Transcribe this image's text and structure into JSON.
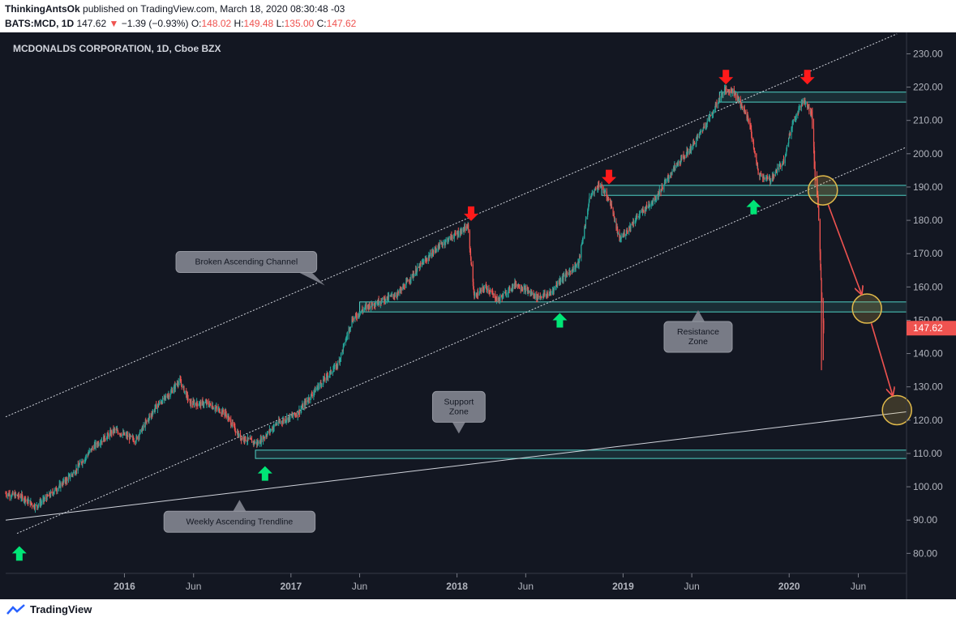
{
  "header": {
    "author": "ThinkingAntsOk",
    "published_text": "published on TradingView.com, March 18, 2020 08:30:48 -03",
    "symbol": "BATS:MCD, 1D",
    "last": "147.62",
    "down_arrow": "▼",
    "change": "−1.39 (−0.93%)",
    "o_label": "O:",
    "o_value": "148.02",
    "h_label": "H:",
    "h_value": "149.48",
    "l_label": "L:",
    "l_value": "135.00",
    "c_label": "C:",
    "c_value": "147.62"
  },
  "footer": {
    "brand": "TradingView",
    "logo_icon": "tradingview-logo-icon"
  },
  "colors": {
    "background": "#131722",
    "up": "#26a69a",
    "down": "#ef5350",
    "zone": "#4fd1c5",
    "price_label": "#ef5350",
    "bull_arrow": "#00e676",
    "bear_arrow": "#ff1a1a",
    "circle": "#e0b94a"
  },
  "chart_data": {
    "type": "candlestick",
    "title": "MCDONALDS CORPORATION, 1D, Cboe BZX",
    "x_domain": [
      "2015-04-15",
      "2020-09-15"
    ],
    "ylim": [
      74,
      234
    ],
    "y_ticks": [
      "230.00",
      "220.00",
      "210.00",
      "200.00",
      "190.00",
      "180.00",
      "170.00",
      "160.00",
      "150.00",
      "140.00",
      "130.00",
      "120.00",
      "110.00",
      "100.00",
      "90.00",
      "80.00"
    ],
    "x_ticks": [
      {
        "label": "2016",
        "date": "2016-01-01",
        "bold": true
      },
      {
        "label": "Jun",
        "date": "2016-06-01",
        "bold": false
      },
      {
        "label": "2017",
        "date": "2017-01-01",
        "bold": true
      },
      {
        "label": "Jun",
        "date": "2017-06-01",
        "bold": false
      },
      {
        "label": "2018",
        "date": "2018-01-01",
        "bold": true
      },
      {
        "label": "Jun",
        "date": "2018-06-01",
        "bold": false
      },
      {
        "label": "2019",
        "date": "2019-01-01",
        "bold": true
      },
      {
        "label": "Jun",
        "date": "2019-06-01",
        "bold": false
      },
      {
        "label": "2020",
        "date": "2020-01-01",
        "bold": true
      },
      {
        "label": "Jun",
        "date": "2020-06-01",
        "bold": false
      }
    ],
    "last_price": "147.62",
    "price_path": [
      [
        "2015-04-15",
        98
      ],
      [
        "2015-05-20",
        97
      ],
      [
        "2015-06-20",
        94
      ],
      [
        "2015-07-25",
        98
      ],
      [
        "2015-09-10",
        104
      ],
      [
        "2015-10-25",
        112
      ],
      [
        "2015-12-10",
        117
      ],
      [
        "2016-01-25",
        114
      ],
      [
        "2016-03-10",
        124
      ],
      [
        "2016-04-10",
        128
      ],
      [
        "2016-05-01",
        132
      ],
      [
        "2016-05-25",
        125
      ],
      [
        "2016-07-01",
        125
      ],
      [
        "2016-08-10",
        122
      ],
      [
        "2016-09-10",
        115
      ],
      [
        "2016-10-20",
        113
      ],
      [
        "2016-12-01",
        119
      ],
      [
        "2017-01-15",
        122
      ],
      [
        "2017-03-01",
        130
      ],
      [
        "2017-04-15",
        137
      ],
      [
        "2017-05-15",
        150
      ],
      [
        "2017-06-15",
        154
      ],
      [
        "2017-07-20",
        156
      ],
      [
        "2017-08-25",
        158
      ],
      [
        "2017-10-10",
        166
      ],
      [
        "2017-11-20",
        172
      ],
      [
        "2017-12-20",
        175
      ],
      [
        "2018-01-25",
        178
      ],
      [
        "2018-02-08",
        157
      ],
      [
        "2018-03-05",
        160
      ],
      [
        "2018-04-01",
        156
      ],
      [
        "2018-05-10",
        161
      ],
      [
        "2018-06-25",
        157
      ],
      [
        "2018-07-25",
        158
      ],
      [
        "2018-08-15",
        162
      ],
      [
        "2018-09-25",
        167
      ],
      [
        "2018-10-20",
        187
      ],
      [
        "2018-11-10",
        191
      ],
      [
        "2018-12-05",
        185
      ],
      [
        "2018-12-24",
        174
      ],
      [
        "2019-02-01",
        181
      ],
      [
        "2019-03-15",
        187
      ],
      [
        "2019-04-25",
        196
      ],
      [
        "2019-06-01",
        202
      ],
      [
        "2019-07-15",
        212
      ],
      [
        "2019-08-10",
        219
      ],
      [
        "2019-09-01",
        219
      ],
      [
        "2019-10-05",
        210
      ],
      [
        "2019-10-25",
        194
      ],
      [
        "2019-11-20",
        192
      ],
      [
        "2019-12-20",
        198
      ],
      [
        "2020-01-10",
        210
      ],
      [
        "2020-02-01",
        216
      ],
      [
        "2020-02-20",
        212
      ],
      [
        "2020-02-27",
        193
      ],
      [
        "2020-03-03",
        190
      ],
      [
        "2020-03-09",
        170
      ],
      [
        "2020-03-12",
        158
      ],
      [
        "2020-03-17",
        147.62
      ]
    ],
    "zones": [
      {
        "from": "2019-08-01",
        "to": "2020-09-15",
        "low": 215.5,
        "high": 218.5
      },
      {
        "from": "2018-11-15",
        "to": "2020-09-15",
        "low": 187.5,
        "high": 190.5
      },
      {
        "from": "2017-06-01",
        "to": "2020-09-15",
        "low": 152.5,
        "high": 155.5
      },
      {
        "from": "2016-10-15",
        "to": "2020-09-15",
        "low": 108.5,
        "high": 111
      }
    ],
    "channel_upper": [
      [
        "2015-04-15",
        121
      ],
      [
        "2020-08-25",
        236
      ]
    ],
    "channel_lower": [
      [
        "2015-05-10",
        86
      ],
      [
        "2020-09-15",
        202
      ]
    ],
    "weekly_trendline": [
      [
        "2015-04-15",
        90
      ],
      [
        "2020-09-15",
        122.5
      ]
    ],
    "bull_arrows": [
      [
        "2015-05-15",
        80
      ],
      [
        "2016-11-05",
        104
      ],
      [
        "2018-08-15",
        150
      ],
      [
        "2019-10-15",
        184
      ]
    ],
    "bear_arrows": [
      [
        "2018-02-01",
        182
      ],
      [
        "2018-12-01",
        193
      ],
      [
        "2019-08-15",
        223
      ],
      [
        "2020-02-10",
        223
      ]
    ],
    "projection_circles": [
      [
        "2020-03-15",
        189
      ],
      [
        "2020-06-20",
        153.5
      ],
      [
        "2020-08-25",
        123
      ]
    ],
    "annotations": [
      {
        "text": "Broken Ascending Channel",
        "lines": [
          "Broken Ascending Channel"
        ],
        "date": "2016-09-25",
        "price": 167.5,
        "tail": "bottom-right"
      },
      {
        "text": "Resistance Zone",
        "lines": [
          "Resistance",
          "Zone"
        ],
        "date": "2019-06-15",
        "price": 145,
        "tail": "top"
      },
      {
        "text": "Support Zone",
        "lines": [
          "Support",
          "Zone"
        ],
        "date": "2018-01-05",
        "price": 124,
        "tail": "bottom"
      },
      {
        "text": "Weekly Ascending Trendline",
        "lines": [
          "Weekly Ascending Trendline"
        ],
        "date": "2016-09-10",
        "price": 89.5,
        "tail": "top"
      }
    ]
  }
}
